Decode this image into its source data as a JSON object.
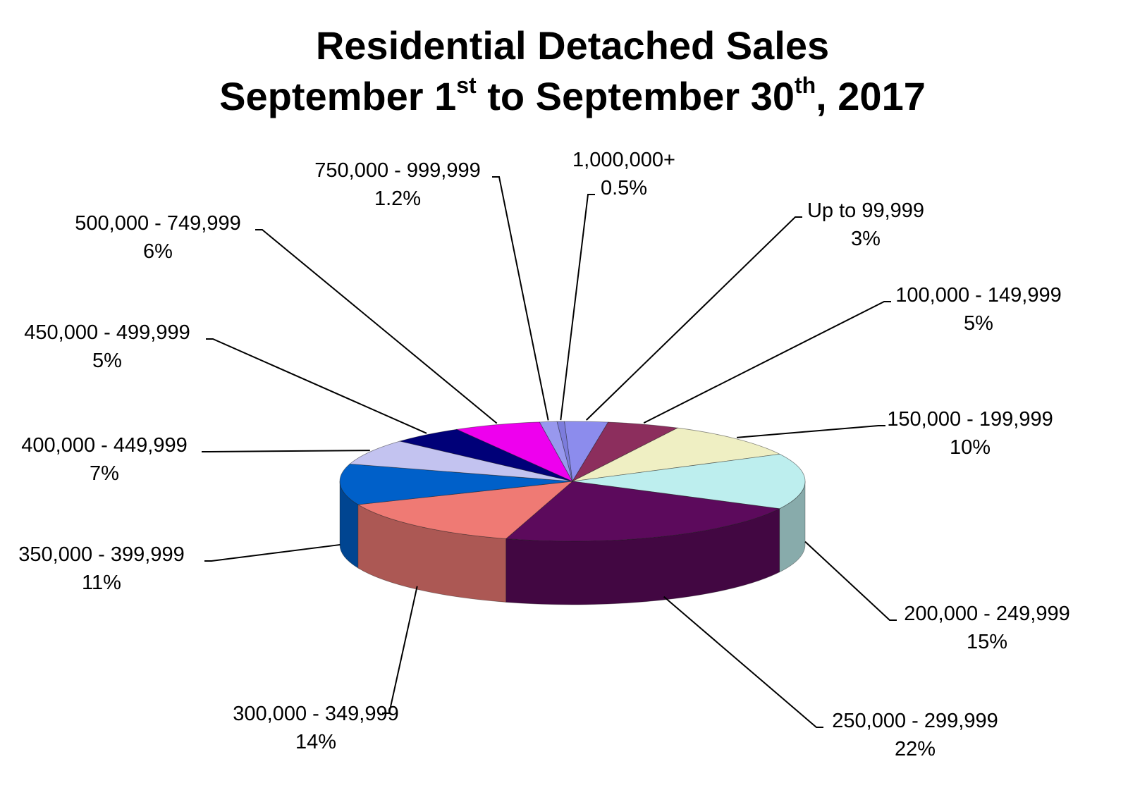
{
  "chart_data": {
    "type": "pie",
    "title": {
      "line1": "Residential Detached Sales",
      "line2_parts": [
        "September 1",
        "st",
        " to September 30",
        "th",
        ", 2017"
      ]
    },
    "slices": [
      {
        "name": "Up to 99,999",
        "label": "3%",
        "value": 3,
        "color": "#8c8ced"
      },
      {
        "name": "100,000 - 149,999",
        "label": "5%",
        "value": 5,
        "color": "#8c2e5d"
      },
      {
        "name": "150,000 - 199,999",
        "label": "10%",
        "value": 10,
        "color": "#efefc3"
      },
      {
        "name": "200,000 - 249,999",
        "label": "15%",
        "value": 15,
        "color": "#bdeeee"
      },
      {
        "name": "250,000 - 299,999",
        "label": "22%",
        "value": 22,
        "color": "#5c0a5c"
      },
      {
        "name": "300,000 - 349,999",
        "label": "14%",
        "value": 14,
        "color": "#ef7a74"
      },
      {
        "name": "350,000 - 399,999",
        "label": "11%",
        "value": 11,
        "color": "#0060c9"
      },
      {
        "name": "400,000 - 449,999",
        "label": "7%",
        "value": 7,
        "color": "#c3c3f0"
      },
      {
        "name": "450,000 - 499,999",
        "label": "5%",
        "value": 5,
        "color": "#000078"
      },
      {
        "name": "500,000 - 749,999",
        "label": "6%",
        "value": 6,
        "color": "#ee00ee"
      },
      {
        "name": "750,000 - 999,999",
        "label": "1.2%",
        "value": 1.2,
        "color": "#9898ee"
      },
      {
        "name": "1,000,000+",
        "label": "0.5%",
        "value": 0.5,
        "color": "#7c7cdc"
      }
    ]
  }
}
